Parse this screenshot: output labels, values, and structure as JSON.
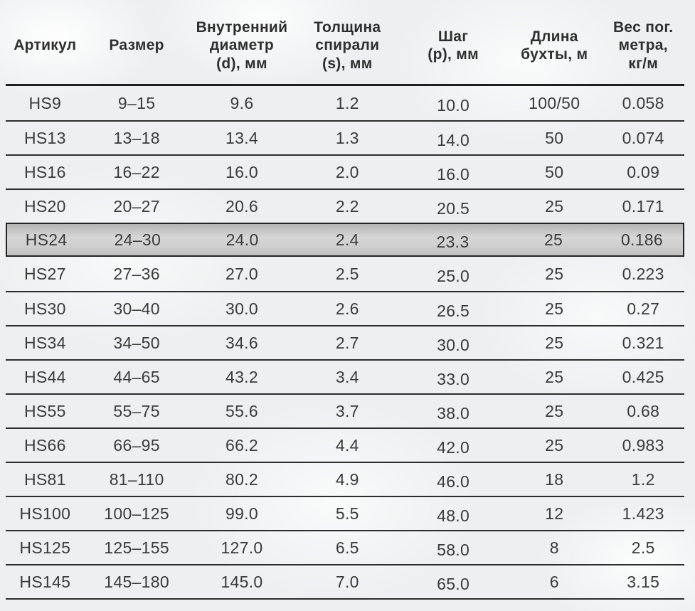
{
  "table": {
    "columns": [
      {
        "key": "article",
        "label": "Артикул"
      },
      {
        "key": "size",
        "label": "Размер"
      },
      {
        "key": "inner-diameter",
        "label": "Внутренний\nдиаметр\n(d), мм"
      },
      {
        "key": "spiral-thickness",
        "label": "Толщина\nспирали\n(s), мм"
      },
      {
        "key": "pitch",
        "label": "Шаг\n(p), мм"
      },
      {
        "key": "coil-length",
        "label": "Длина\nбухты, м"
      },
      {
        "key": "weight-per-meter",
        "label": "Вес пог.\nметра,\nкг/м"
      }
    ],
    "highlighted_row": "HS24",
    "rows": [
      [
        "HS9",
        "9–15",
        "9.6",
        "1.2",
        "10.0",
        "100/50",
        "0.058"
      ],
      [
        "HS13",
        "13–18",
        "13.4",
        "1.3",
        "14.0",
        "50",
        "0.074"
      ],
      [
        "HS16",
        "16–22",
        "16.0",
        "2.0",
        "16.0",
        "50",
        "0.09"
      ],
      [
        "HS20",
        "20–27",
        "20.6",
        "2.2",
        "20.5",
        "25",
        "0.171"
      ],
      [
        "HS24",
        "24–30",
        "24.0",
        "2.4",
        "23.3",
        "25",
        "0.186"
      ],
      [
        "HS27",
        "27–36",
        "27.0",
        "2.5",
        "25.0",
        "25",
        "0.223"
      ],
      [
        "HS30",
        "30–40",
        "30.0",
        "2.6",
        "26.5",
        "25",
        "0.27"
      ],
      [
        "HS34",
        "34–50",
        "34.6",
        "2.7",
        "30.0",
        "25",
        "0.321"
      ],
      [
        "HS44",
        "44–65",
        "43.2",
        "3.4",
        "33.0",
        "25",
        "0.425"
      ],
      [
        "HS55",
        "55–75",
        "55.6",
        "3.7",
        "38.0",
        "25",
        "0.68"
      ],
      [
        "HS66",
        "66–95",
        "66.2",
        "4.4",
        "42.0",
        "25",
        "0.983"
      ],
      [
        "HS81",
        "81–110",
        "80.2",
        "4.9",
        "46.0",
        "18",
        "1.2"
      ],
      [
        "HS100",
        "100–125",
        "99.0",
        "5.5",
        "48.0",
        "12",
        "1.423"
      ],
      [
        "HS125",
        "125–155",
        "127.0",
        "6.5",
        "58.0",
        "8",
        "2.5"
      ],
      [
        "HS145",
        "145–180",
        "145.0",
        "7.0",
        "65.0",
        "6",
        "3.15"
      ]
    ]
  },
  "colors": {
    "background": "#edeff0",
    "text": "#3b3b3b",
    "rule": "#2d2d2d",
    "highlight_fill": "#c9c9c9",
    "highlight_border": "#242424"
  }
}
